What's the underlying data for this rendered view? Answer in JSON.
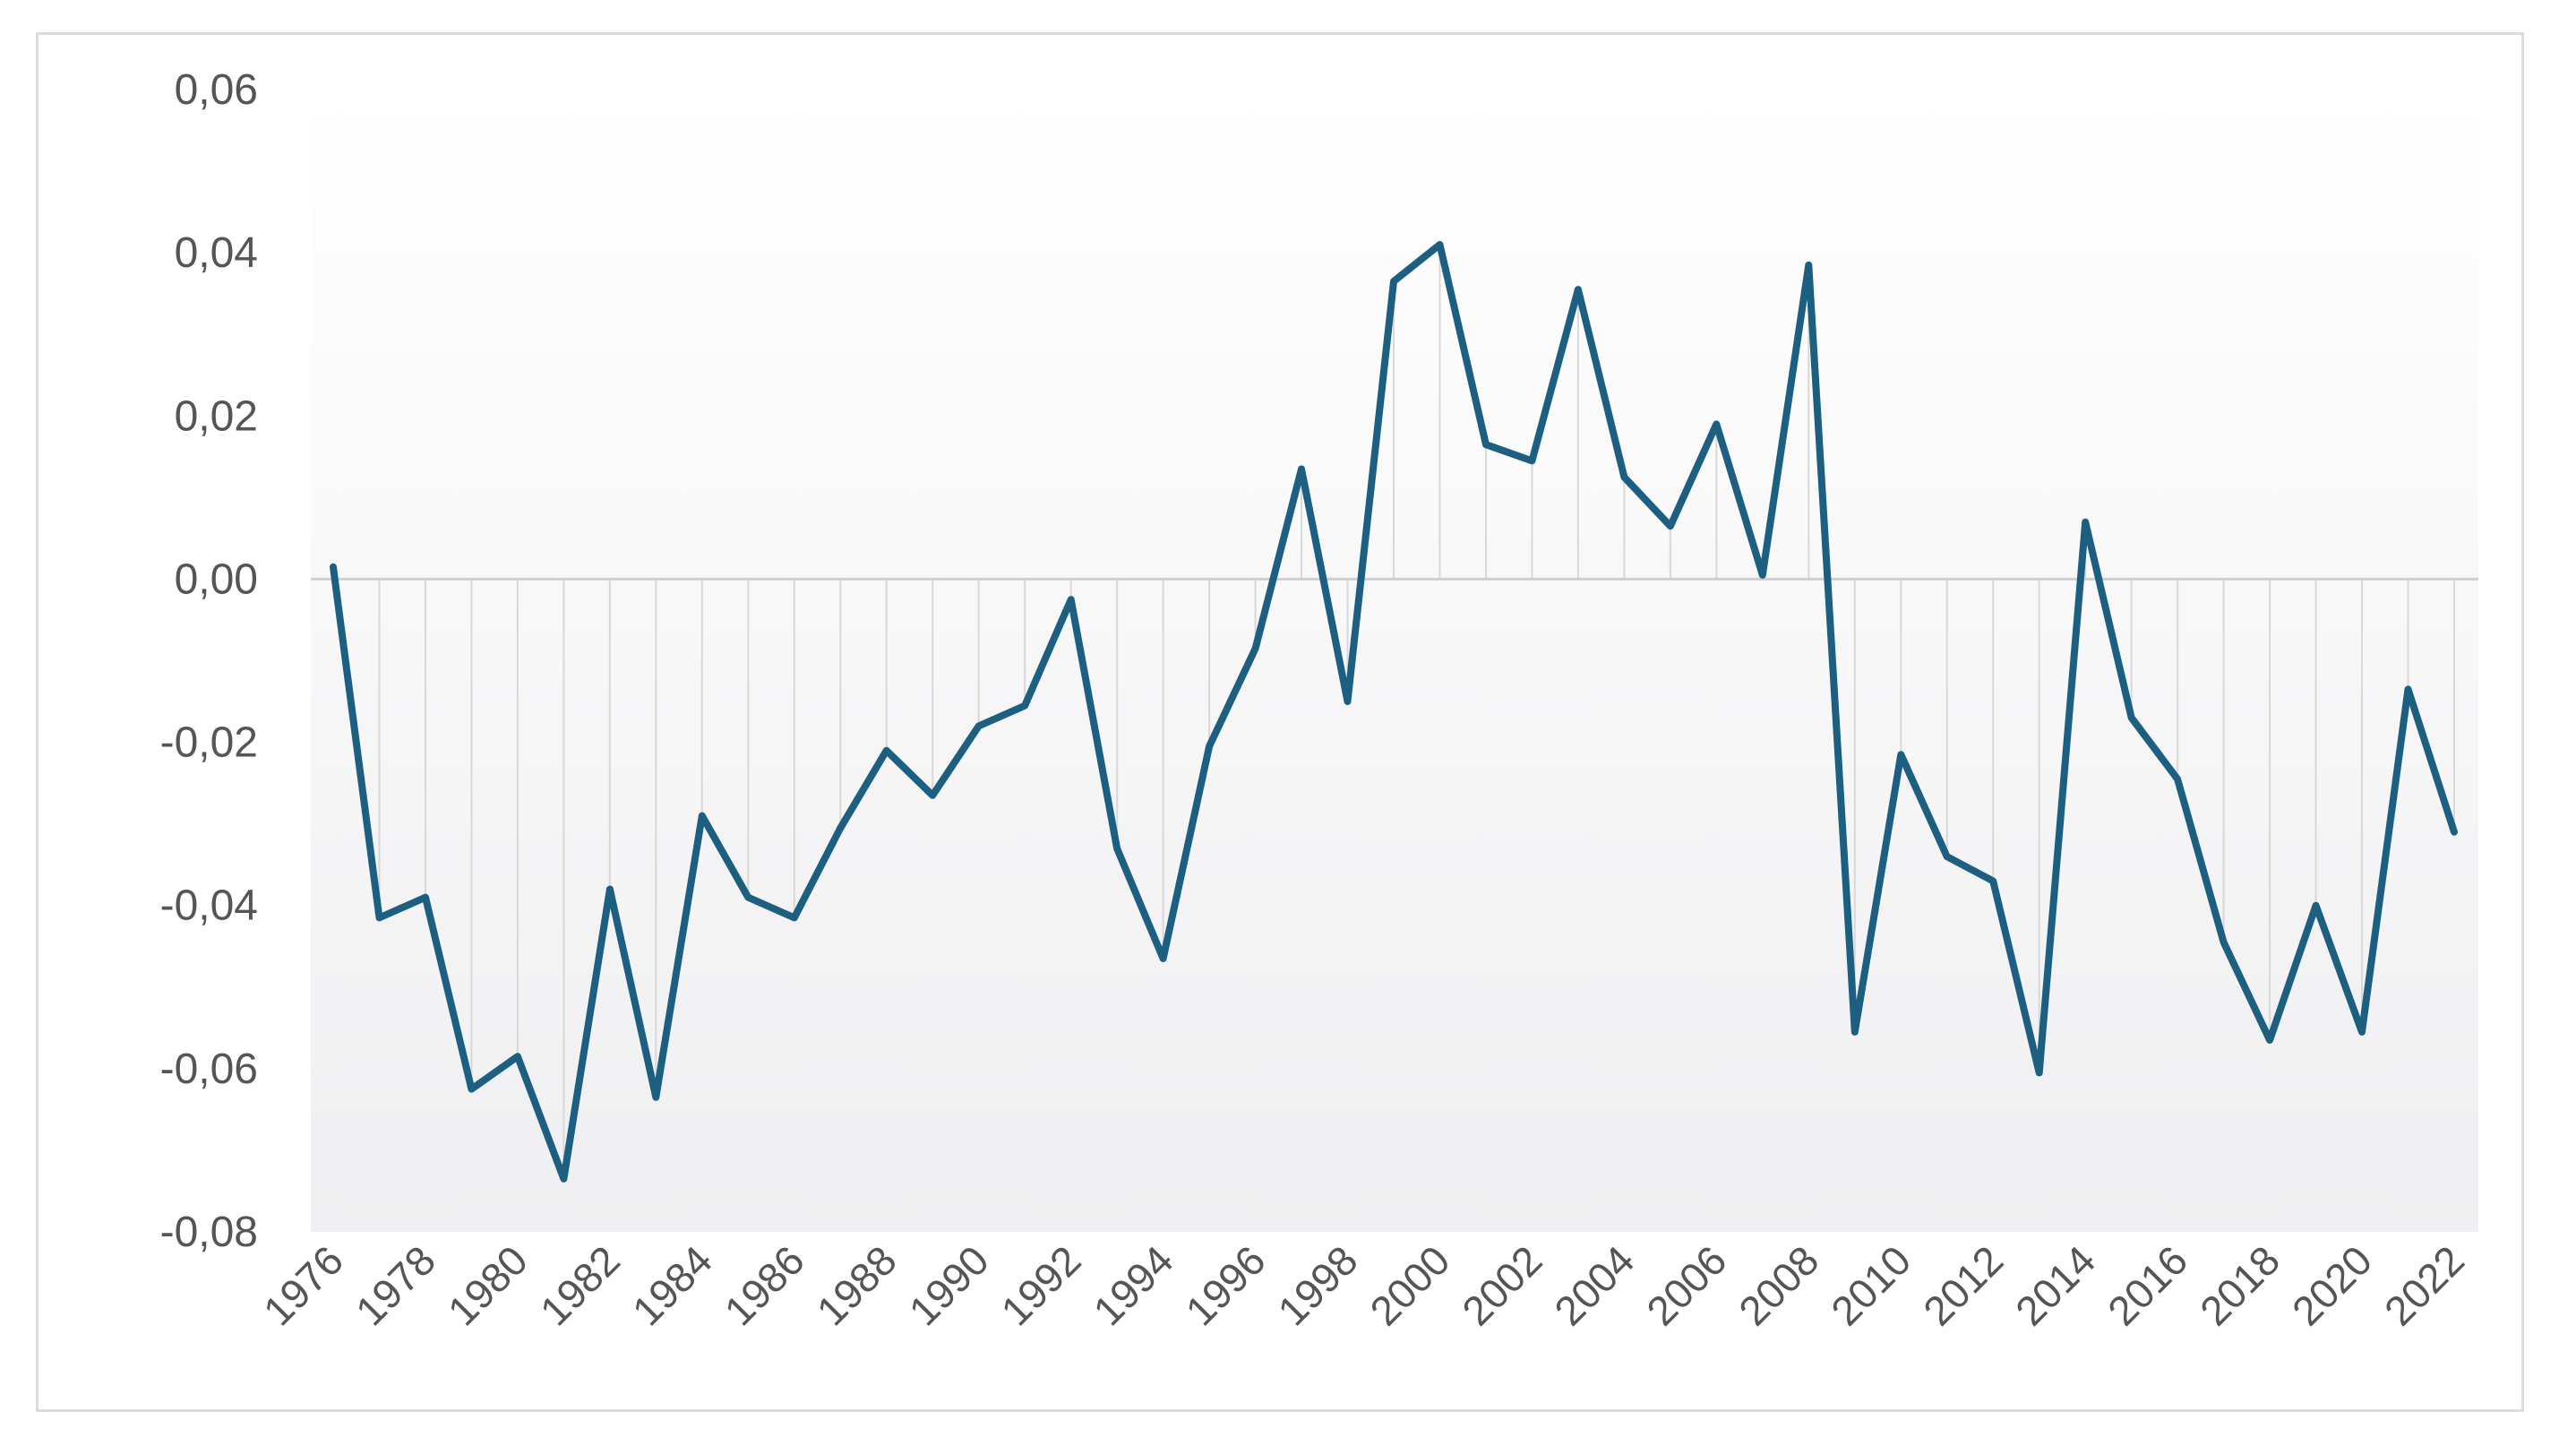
{
  "chart_data": {
    "type": "line",
    "title": "",
    "xlabel": "",
    "ylabel": "",
    "x": [
      1976,
      1977,
      1978,
      1979,
      1980,
      1981,
      1982,
      1983,
      1984,
      1985,
      1986,
      1987,
      1988,
      1989,
      1990,
      1991,
      1992,
      1993,
      1994,
      1995,
      1996,
      1997,
      1998,
      1999,
      2000,
      2001,
      2002,
      2003,
      2004,
      2005,
      2006,
      2007,
      2008,
      2009,
      2010,
      2011,
      2012,
      2013,
      2014,
      2015,
      2016,
      2017,
      2018,
      2019,
      2020,
      2021,
      2022
    ],
    "series": [
      {
        "values": [
          0.0015,
          -0.0415,
          -0.039,
          -0.0625,
          -0.0585,
          -0.0735,
          -0.038,
          -0.0635,
          -0.029,
          -0.039,
          -0.0415,
          -0.0305,
          -0.021,
          -0.0265,
          -0.018,
          -0.0155,
          -0.0025,
          -0.033,
          -0.0465,
          -0.0205,
          -0.0085,
          0.0135,
          -0.015,
          0.0365,
          0.041,
          0.0165,
          0.0145,
          0.0355,
          0.0125,
          0.0065,
          0.019,
          0.0005,
          0.0385,
          -0.0555,
          -0.0215,
          -0.034,
          -0.037,
          -0.0605,
          0.007,
          -0.017,
          -0.0245,
          -0.0445,
          -0.0565,
          -0.04,
          -0.0555,
          -0.0135,
          -0.031
        ],
        "color": "#1d5f80"
      }
    ],
    "xticks": [
      "1976",
      "1978",
      "1980",
      "1982",
      "1984",
      "1986",
      "1988",
      "1990",
      "1992",
      "1994",
      "1996",
      "1998",
      "2000",
      "2002",
      "2004",
      "2006",
      "2008",
      "2010",
      "2012",
      "2014",
      "2016",
      "2018",
      "2020",
      "2022"
    ],
    "yticks": [
      "0,06",
      "0,04",
      "0,02",
      "0,00",
      "-0,02",
      "-0,04",
      "-0,06",
      "-0,08"
    ],
    "ytick_values": [
      0.06,
      0.04,
      0.02,
      0.0,
      -0.02,
      -0.04,
      -0.06,
      -0.08
    ],
    "ylim": [
      -0.08,
      0.06
    ],
    "xlim": [
      1976,
      2022
    ],
    "grid": "vertical drop lines from zero",
    "legend": "none"
  }
}
